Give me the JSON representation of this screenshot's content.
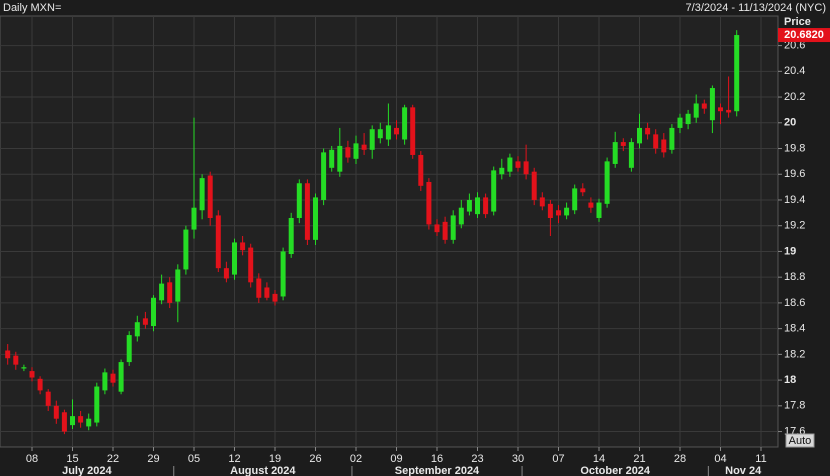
{
  "header": {
    "title": "Daily MXN=",
    "range": "7/3/2024 - 11/13/2024 (NYC)"
  },
  "controls": {
    "scale_button": "Auto"
  },
  "chart_data": {
    "type": "candlestick",
    "y_axis_title": "Price",
    "x": [
      "2024-07-03",
      "2024-07-04",
      "2024-07-05",
      "2024-07-08",
      "2024-07-09",
      "2024-07-10",
      "2024-07-11",
      "2024-07-12",
      "2024-07-15",
      "2024-07-16",
      "2024-07-17",
      "2024-07-18",
      "2024-07-19",
      "2024-07-22",
      "2024-07-23",
      "2024-07-24",
      "2024-07-25",
      "2024-07-26",
      "2024-07-29",
      "2024-07-30",
      "2024-07-31",
      "2024-08-01",
      "2024-08-02",
      "2024-08-05",
      "2024-08-06",
      "2024-08-07",
      "2024-08-08",
      "2024-08-09",
      "2024-08-12",
      "2024-08-13",
      "2024-08-14",
      "2024-08-15",
      "2024-08-16",
      "2024-08-19",
      "2024-08-20",
      "2024-08-21",
      "2024-08-22",
      "2024-08-23",
      "2024-08-26",
      "2024-08-27",
      "2024-08-28",
      "2024-08-29",
      "2024-08-30",
      "2024-09-02",
      "2024-09-03",
      "2024-09-04",
      "2024-09-05",
      "2024-09-06",
      "2024-09-09",
      "2024-09-10",
      "2024-09-11",
      "2024-09-12",
      "2024-09-13",
      "2024-09-16",
      "2024-09-17",
      "2024-09-18",
      "2024-09-19",
      "2024-09-20",
      "2024-09-23",
      "2024-09-24",
      "2024-09-25",
      "2024-09-26",
      "2024-09-27",
      "2024-09-30",
      "2024-10-01",
      "2024-10-02",
      "2024-10-03",
      "2024-10-04",
      "2024-10-07",
      "2024-10-08",
      "2024-10-09",
      "2024-10-10",
      "2024-10-11",
      "2024-10-14",
      "2024-10-15",
      "2024-10-16",
      "2024-10-17",
      "2024-10-18",
      "2024-10-21",
      "2024-10-22",
      "2024-10-23",
      "2024-10-24",
      "2024-10-25",
      "2024-10-28",
      "2024-10-29",
      "2024-10-30",
      "2024-10-31",
      "2024-11-01",
      "2024-11-04",
      "2024-11-05",
      "2024-11-06"
    ],
    "open": [
      18.23,
      18.19,
      18.09,
      18.07,
      18.01,
      17.91,
      17.8,
      17.75,
      17.65,
      17.72,
      17.64,
      17.67,
      17.92,
      18.05,
      17.91,
      18.14,
      18.34,
      18.48,
      18.42,
      18.62,
      18.76,
      18.61,
      18.86,
      19.17,
      19.32,
      19.59,
      19.28,
      18.87,
      18.82,
      19.07,
      19.03,
      18.79,
      18.72,
      18.67,
      18.65,
      18.98,
      19.26,
      19.53,
      19.09,
      19.4,
      19.65,
      19.62,
      19.81,
      19.72,
      19.83,
      19.79,
      19.88,
      19.87,
      19.96,
      19.87,
      20.12,
      19.75,
      19.54,
      19.21,
      19.23,
      19.09,
      19.21,
      19.31,
      19.29,
      19.42,
      19.31,
      19.6,
      19.62,
      19.7,
      19.7,
      19.62,
      19.42,
      19.37,
      19.32,
      19.28,
      19.32,
      19.49,
      19.38,
      19.26,
      19.37,
      19.68,
      19.85,
      19.65,
      19.84,
      19.96,
      19.91,
      19.87,
      19.79,
      19.96,
      19.99,
      20.04,
      20.15,
      20.02,
      20.12,
      20.1,
      20.09
    ],
    "high": [
      18.28,
      18.22,
      18.12,
      18.1,
      18.03,
      17.93,
      17.84,
      17.77,
      17.85,
      17.76,
      17.74,
      17.98,
      18.09,
      18.08,
      18.16,
      18.38,
      18.5,
      18.53,
      18.66,
      18.82,
      18.8,
      18.9,
      19.2,
      20.04,
      19.6,
      19.62,
      19.32,
      18.92,
      19.1,
      19.12,
      19.06,
      18.83,
      18.76,
      18.7,
      19.03,
      19.3,
      19.56,
      19.56,
      19.45,
      19.8,
      19.82,
      19.96,
      19.86,
      19.9,
      19.92,
      19.98,
      20.0,
      20.15,
      20.02,
      20.14,
      20.14,
      19.78,
      19.57,
      19.25,
      19.27,
      19.32,
      19.4,
      19.45,
      19.46,
      19.45,
      19.66,
      19.72,
      19.76,
      19.74,
      19.83,
      19.65,
      19.46,
      19.4,
      19.36,
      19.38,
      19.52,
      19.53,
      19.42,
      19.41,
      19.73,
      19.93,
      19.88,
      19.88,
      20.07,
      20.0,
      19.95,
      19.92,
      19.99,
      20.07,
      20.1,
      20.22,
      20.18,
      20.29,
      20.15,
      20.36,
      20.72
    ],
    "low": [
      18.12,
      18.08,
      18.07,
      17.99,
      17.89,
      17.76,
      17.66,
      17.58,
      17.62,
      17.63,
      17.61,
      17.64,
      17.89,
      17.95,
      17.89,
      18.11,
      18.3,
      18.4,
      18.38,
      18.59,
      18.56,
      18.45,
      18.82,
      19.1,
      19.25,
      19.2,
      18.84,
      18.76,
      18.78,
      18.97,
      18.72,
      18.6,
      18.62,
      18.58,
      18.62,
      18.95,
      19.22,
      19.05,
      19.05,
      19.36,
      19.62,
      19.58,
      19.69,
      19.68,
      19.75,
      19.72,
      19.84,
      19.82,
      19.87,
      19.83,
      19.72,
      19.47,
      19.17,
      19.12,
      19.06,
      19.06,
      19.18,
      19.28,
      19.26,
      19.26,
      19.28,
      19.56,
      19.58,
      19.62,
      19.56,
      19.36,
      19.32,
      19.12,
      19.22,
      19.25,
      19.29,
      19.43,
      19.3,
      19.23,
      19.34,
      19.65,
      19.78,
      19.62,
      19.8,
      19.87,
      19.76,
      19.73,
      19.76,
      19.92,
      19.95,
      20.0,
      20.07,
      19.92,
      19.99,
      20.04,
      20.05
    ],
    "close": [
      18.17,
      18.12,
      18.1,
      18.02,
      17.92,
      17.8,
      17.7,
      17.6,
      17.72,
      17.67,
      17.7,
      17.95,
      18.06,
      17.98,
      18.14,
      18.35,
      18.45,
      18.43,
      18.64,
      18.75,
      18.6,
      18.86,
      19.17,
      19.34,
      19.57,
      19.26,
      18.87,
      18.79,
      19.07,
      19.01,
      18.76,
      18.64,
      18.64,
      18.61,
      19.0,
      19.26,
      19.53,
      19.09,
      19.42,
      19.77,
      19.79,
      19.82,
      19.73,
      19.84,
      19.79,
      19.95,
      19.95,
      19.98,
      19.91,
      20.12,
      19.75,
      19.51,
      19.21,
      19.15,
      19.09,
      19.28,
      19.34,
      19.4,
      19.42,
      19.29,
      19.63,
      19.65,
      19.73,
      19.65,
      19.6,
      19.4,
      19.35,
      19.26,
      19.28,
      19.34,
      19.49,
      19.46,
      19.34,
      19.38,
      19.7,
      19.85,
      19.82,
      19.85,
      19.96,
      19.91,
      19.8,
      19.77,
      19.96,
      20.04,
      20.07,
      20.15,
      20.11,
      20.27,
      20.09,
      20.08,
      20.682
    ],
    "up_color": "#25dc25",
    "down_color": "#e3121b",
    "ylim": [
      17.48,
      20.83
    ],
    "yticks": [
      17.6,
      17.8,
      18,
      18.2,
      18.4,
      18.6,
      18.8,
      19,
      19.2,
      19.4,
      19.6,
      19.8,
      20,
      20.2,
      20.4,
      20.6
    ],
    "xticks": [
      {
        "value": "2024-07-08",
        "label": "08"
      },
      {
        "value": "2024-07-15",
        "label": "15"
      },
      {
        "value": "2024-07-22",
        "label": "22"
      },
      {
        "value": "2024-07-29",
        "label": "29"
      },
      {
        "value": "2024-08-05",
        "label": "05"
      },
      {
        "value": "2024-08-12",
        "label": "12"
      },
      {
        "value": "2024-08-19",
        "label": "19"
      },
      {
        "value": "2024-08-26",
        "label": "26"
      },
      {
        "value": "2024-09-02",
        "label": "02"
      },
      {
        "value": "2024-09-09",
        "label": "09"
      },
      {
        "value": "2024-09-16",
        "label": "16"
      },
      {
        "value": "2024-09-23",
        "label": "23"
      },
      {
        "value": "2024-09-30",
        "label": "30"
      },
      {
        "value": "2024-10-07",
        "label": "07"
      },
      {
        "value": "2024-10-14",
        "label": "14"
      },
      {
        "value": "2024-10-21",
        "label": "21"
      },
      {
        "value": "2024-10-28",
        "label": "28"
      },
      {
        "value": "2024-11-04",
        "label": "04"
      },
      {
        "value": "2024-11-11",
        "label": "11"
      }
    ],
    "months": [
      {
        "value": "2024-07",
        "label": "July 2024"
      },
      {
        "value": "2024-08",
        "label": "August 2024"
      },
      {
        "value": "2024-09",
        "label": "September 2024"
      },
      {
        "value": "2024-10",
        "label": "October 2024"
      },
      {
        "value": "2024-11",
        "label": "Nov 24"
      }
    ],
    "grid": true,
    "last_price": {
      "value": 20.682,
      "label": "20.6820"
    }
  }
}
